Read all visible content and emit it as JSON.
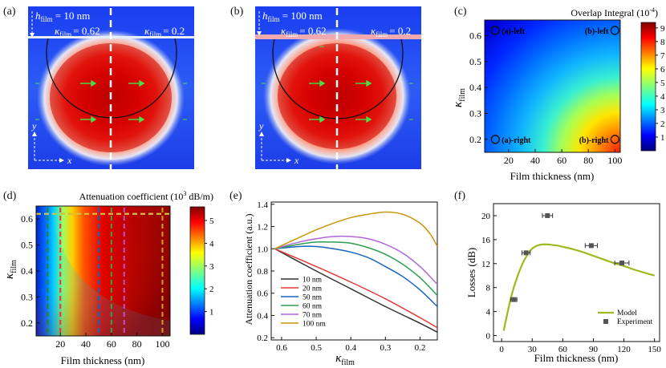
{
  "panels": {
    "a": {
      "label": "(a)",
      "h_film": "h",
      "h_sub": "film",
      "h_value": " = 10 nm",
      "k_left": "= 0.62",
      "k_right": "= 0.2",
      "k_sym": "κ",
      "k_sub": "film",
      "axis_x": "x",
      "axis_y": "y"
    },
    "b": {
      "label": "(b)",
      "h_film": "h",
      "h_sub": "film",
      "h_value": " = 100 nm",
      "k_left": "= 0.62",
      "k_right": "= 0.2",
      "k_sym": "κ",
      "k_sub": "film",
      "axis_x": "x",
      "axis_y": "y"
    },
    "c": {
      "label": "(c)"
    },
    "d": {
      "label": "(d)"
    },
    "e": {
      "label": "(e)"
    },
    "f": {
      "label": "(f)"
    }
  },
  "chart_data": [
    {
      "id": "c",
      "type": "heatmap",
      "title": "Overlap Integral (10",
      "title_exp": "-4",
      "title_end": ")",
      "xlabel": "Film thickness (nm)",
      "ylabel": "κ",
      "ylabel_sub": "film",
      "x_ticks": [
        "20",
        "40",
        "60",
        "80",
        "100"
      ],
      "y_ticks": [
        "0.2",
        "0.3",
        "0.4",
        "0.5",
        "0.6"
      ],
      "xlim": [
        2,
        104
      ],
      "ylim": [
        0.15,
        0.66
      ],
      "colorbar_ticks": [
        "1",
        "2",
        "3",
        "4",
        "5",
        "6",
        "7",
        "8",
        "9"
      ],
      "colorbar_range": [
        0,
        9.4
      ],
      "markers": [
        {
          "label": "(a)-left",
          "x": 10,
          "y": 0.62
        },
        {
          "label": "(b)-left",
          "x": 100,
          "y": 0.62
        },
        {
          "label": "(a)-right",
          "x": 10,
          "y": 0.2
        },
        {
          "label": "(b)-right",
          "x": 100,
          "y": 0.2
        }
      ]
    },
    {
      "id": "d",
      "type": "heatmap",
      "title": "Attenuation coefficient (10",
      "title_exp": "3",
      "title_end": " dB/m)",
      "xlabel": "Film thickness (nm)",
      "ylabel": "κ",
      "ylabel_sub": "film",
      "x_ticks": [
        "20",
        "40",
        "60",
        "80",
        "100"
      ],
      "y_ticks": [
        "0.2",
        "0.3",
        "0.4",
        "0.5",
        "0.6"
      ],
      "xlim": [
        1,
        106
      ],
      "ylim": [
        0.15,
        0.65
      ],
      "colorbar_ticks": [
        "1",
        "2",
        "3",
        "4",
        "5"
      ],
      "colorbar_range": [
        0,
        5.6
      ],
      "vertical_lines": [
        {
          "x": 10,
          "color": "#2e7d32"
        },
        {
          "x": 20,
          "color": "#e53935"
        },
        {
          "x": 50,
          "color": "#1565c0"
        },
        {
          "x": 60,
          "color": "#43a047"
        },
        {
          "x": 70,
          "color": "#c050d0"
        },
        {
          "x": 100,
          "color": "#d4a017"
        }
      ],
      "horizontal_line": {
        "y": 0.62,
        "color": "#d4c040"
      }
    },
    {
      "id": "e",
      "type": "line",
      "xlabel": "κ",
      "xlabel_sub": "film",
      "ylabel": "Attenuation coefficient (a.u.)",
      "x_ticks": [
        "0.6",
        "0.5",
        "0.4",
        "0.3",
        "0.2"
      ],
      "y_ticks": [
        "0.2",
        "0.4",
        "0.6",
        "0.8",
        "1.0",
        "1.2",
        "1.4"
      ],
      "xlim": [
        0.63,
        0.15
      ],
      "ylim": [
        0.18,
        1.42
      ],
      "series": [
        {
          "name": "10 nm",
          "color": "#333333",
          "x": [
            0.62,
            0.5,
            0.4,
            0.3,
            0.2,
            0.15
          ],
          "values": [
            1.0,
            0.8,
            0.64,
            0.48,
            0.33,
            0.25
          ]
        },
        {
          "name": "20 nm",
          "color": "#e53935",
          "x": [
            0.62,
            0.5,
            0.4,
            0.3,
            0.2,
            0.15
          ],
          "values": [
            1.0,
            0.84,
            0.7,
            0.55,
            0.38,
            0.29
          ]
        },
        {
          "name": "50 nm",
          "color": "#1565c0",
          "x": [
            0.62,
            0.55,
            0.5,
            0.45,
            0.4,
            0.35,
            0.3,
            0.25,
            0.2,
            0.15
          ],
          "values": [
            1.0,
            1.02,
            1.02,
            1.0,
            0.97,
            0.92,
            0.84,
            0.75,
            0.63,
            0.48
          ]
        },
        {
          "name": "60 nm",
          "color": "#2e9e4f",
          "x": [
            0.62,
            0.55,
            0.5,
            0.45,
            0.4,
            0.35,
            0.3,
            0.25,
            0.2,
            0.15
          ],
          "values": [
            1.0,
            1.04,
            1.06,
            1.06,
            1.05,
            1.01,
            0.95,
            0.86,
            0.74,
            0.58
          ]
        },
        {
          "name": "70 nm",
          "color": "#b266d9",
          "x": [
            0.62,
            0.55,
            0.5,
            0.45,
            0.4,
            0.35,
            0.3,
            0.25,
            0.2,
            0.15
          ],
          "values": [
            1.0,
            1.06,
            1.09,
            1.11,
            1.11,
            1.09,
            1.04,
            0.96,
            0.84,
            0.68
          ]
        },
        {
          "name": "100 nm",
          "color": "#c8960c",
          "x": [
            0.62,
            0.55,
            0.5,
            0.45,
            0.4,
            0.35,
            0.3,
            0.25,
            0.2,
            0.17,
            0.15
          ],
          "values": [
            1.0,
            1.1,
            1.17,
            1.23,
            1.28,
            1.31,
            1.33,
            1.31,
            1.23,
            1.13,
            1.02
          ]
        }
      ]
    },
    {
      "id": "f",
      "type": "scatter",
      "xlabel": "Film thickness (nm)",
      "ylabel": "Losses (dB)",
      "x_ticks": [
        "0",
        "30",
        "60",
        "90",
        "120",
        "150"
      ],
      "y_ticks": [
        "0",
        "4",
        "8",
        "12",
        "16",
        "20"
      ],
      "xlim": [
        -8,
        155
      ],
      "ylim": [
        -1,
        22
      ],
      "legend": [
        "Model",
        "Experiment"
      ],
      "model": {
        "color": "#9dbb1c",
        "x": [
          2,
          6,
          10,
          15,
          20,
          25,
          30,
          35,
          40,
          45,
          50,
          55,
          60,
          70,
          80,
          90,
          100,
          110,
          120,
          130,
          140,
          150
        ],
        "values": [
          0.8,
          4.0,
          6.9,
          9.6,
          11.8,
          13.4,
          14.5,
          15.0,
          15.2,
          15.2,
          15.1,
          15.0,
          14.8,
          14.4,
          13.9,
          13.3,
          12.7,
          12.1,
          11.6,
          11.0,
          10.5,
          10.0
        ]
      },
      "experiment": [
        {
          "x": 12,
          "y": 6.0,
          "xerr": 3
        },
        {
          "x": 24,
          "y": 13.8,
          "xerr": 4
        },
        {
          "x": 45,
          "y": 20.0,
          "xerr": 5
        },
        {
          "x": 88,
          "y": 15.0,
          "xerr": 6
        },
        {
          "x": 118,
          "y": 12.1,
          "xerr": 7
        }
      ]
    }
  ]
}
